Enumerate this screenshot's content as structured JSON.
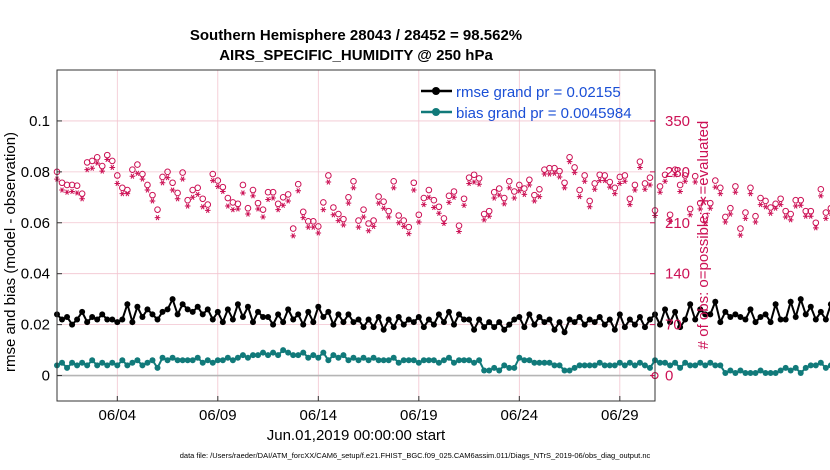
{
  "chart_data": {
    "type": "line",
    "title": [
      "Southern Hemisphere 28043 / 28452 = 98.562%",
      "AIRS_SPECIFIC_HUMIDITY @ 250 hPa"
    ],
    "xlabel": "Jun.01,2019 00:00:00 start",
    "ylabel_left": "rmse and bias (model - observation)",
    "ylabel_right": "# of obs: o=possible; ∗=evaluated",
    "footer": "data file: /Users/raeder/DAI/ATM_forcXX/CAM6_setup/f.e21.FHIST_BGC.f09_025.CAM6assim.011/Diags_NTrS_2019-06/obs_diag_output.nc",
    "x_ticks": [
      "06/04",
      "06/09",
      "06/14",
      "06/19",
      "06/24",
      "06/29"
    ],
    "x_tick_days": [
      4,
      9,
      14,
      19,
      24,
      29
    ],
    "xlim_days": [
      1.0,
      30.75
    ],
    "ylim_left": [
      -0.01,
      0.12
    ],
    "y_ticks_left": [
      "0",
      "0.02",
      "0.04",
      "0.06",
      "0.08",
      "0.1"
    ],
    "y_tick_values_left": [
      0,
      0.02,
      0.04,
      0.06,
      0.08,
      0.1
    ],
    "ylim_right": [
      -35,
      420
    ],
    "y_ticks_right": [
      "0",
      "70",
      "140",
      "210",
      "280",
      "350"
    ],
    "y_tick_values_right": [
      0,
      70,
      140,
      210,
      280,
      350
    ],
    "legend": [
      {
        "label": "rmse grand pr = 0.02155",
        "color": "#000000"
      },
      {
        "label": "bias grand pr = 0.0045984",
        "color": "#117a7a"
      }
    ],
    "colors": {
      "rmse": "#000000",
      "bias": "#117a7a",
      "counts": "#cc1155",
      "grid": "#f2c4cf"
    },
    "series": [
      {
        "name": "rmse",
        "values": [
          0.024,
          0.022,
          0.023,
          0.02,
          0.022,
          0.025,
          0.021,
          0.023,
          0.022,
          0.024,
          0.022,
          0.022,
          0.021,
          0.022,
          0.028,
          0.021,
          0.027,
          0.023,
          0.026,
          0.024,
          0.022,
          0.025,
          0.026,
          0.03,
          0.024,
          0.028,
          0.026,
          0.025,
          0.027,
          0.024,
          0.026,
          0.022,
          0.025,
          0.021,
          0.026,
          0.022,
          0.028,
          0.023,
          0.027,
          0.021,
          0.025,
          0.023,
          0.023,
          0.02,
          0.024,
          0.021,
          0.026,
          0.022,
          0.024,
          0.02,
          0.025,
          0.021,
          0.027,
          0.023,
          0.025,
          0.02,
          0.024,
          0.021,
          0.024,
          0.021,
          0.022,
          0.019,
          0.022,
          0.019,
          0.023,
          0.018,
          0.022,
          0.019,
          0.023,
          0.02,
          0.022,
          0.021,
          0.023,
          0.019,
          0.022,
          0.02,
          0.024,
          0.021,
          0.025,
          0.02,
          0.024,
          0.022,
          0.022,
          0.018,
          0.022,
          0.019,
          0.021,
          0.019,
          0.021,
          0.018,
          0.02,
          0.022,
          0.023,
          0.019,
          0.024,
          0.02,
          0.023,
          0.021,
          0.022,
          0.018,
          0.021,
          0.017,
          0.022,
          0.021,
          0.023,
          0.02,
          0.022,
          0.021,
          0.023,
          0.02,
          0.022,
          0.018,
          0.024,
          0.019,
          0.022,
          0.02,
          0.023,
          0.019,
          0.022,
          0.024,
          0.02,
          0.026,
          0.021,
          0.025,
          0.019,
          0.022,
          0.028,
          0.022,
          0.026,
          0.024,
          0.024,
          0.029,
          0.021,
          0.025,
          0.023,
          0.024,
          0.023,
          0.022,
          0.026,
          0.021,
          0.023,
          0.024,
          0.021,
          0.028,
          0.022,
          0.022,
          0.029,
          0.023,
          0.03,
          0.024,
          0.027,
          0.022,
          0.025,
          0.022,
          0.028,
          0.023,
          0.026,
          0.022,
          0.024,
          0.023,
          0.024,
          0.023,
          0.024,
          0.022,
          0.023,
          0.017,
          0.025,
          0.02,
          0.024,
          0.021,
          0.023,
          0.022,
          0.023,
          0.024
        ]
      },
      {
        "name": "bias",
        "values": [
          0.004,
          0.005,
          0.003,
          0.005,
          0.004,
          0.005,
          0.004,
          0.006,
          0.004,
          0.005,
          0.004,
          0.005,
          0.004,
          0.006,
          0.004,
          0.005,
          0.006,
          0.004,
          0.005,
          0.006,
          0.003,
          0.007,
          0.006,
          0.007,
          0.006,
          0.006,
          0.006,
          0.006,
          0.007,
          0.005,
          0.006,
          0.005,
          0.006,
          0.006,
          0.007,
          0.006,
          0.007,
          0.008,
          0.007,
          0.008,
          0.008,
          0.009,
          0.008,
          0.009,
          0.008,
          0.01,
          0.009,
          0.008,
          0.008,
          0.009,
          0.007,
          0.008,
          0.007,
          0.009,
          0.006,
          0.008,
          0.007,
          0.008,
          0.006,
          0.007,
          0.006,
          0.007,
          0.006,
          0.007,
          0.006,
          0.006,
          0.006,
          0.007,
          0.005,
          0.006,
          0.006,
          0.006,
          0.005,
          0.006,
          0.006,
          0.006,
          0.005,
          0.006,
          0.007,
          0.005,
          0.006,
          0.006,
          0.006,
          0.005,
          0.006,
          0.002,
          0.002,
          0.003,
          0.002,
          0.004,
          0.003,
          0.003,
          0.007,
          0.006,
          0.006,
          0.005,
          0.005,
          0.005,
          0.005,
          0.004,
          0.004,
          0.002,
          0.002,
          0.003,
          0.004,
          0.004,
          0.004,
          0.004,
          0.005,
          0.004,
          0.004,
          0.004,
          0.005,
          0.004,
          0.005,
          0.004,
          0.005,
          0.004,
          0.003,
          0.006,
          0.005,
          0.005,
          0.004,
          0.005,
          0.003,
          0.005,
          0.004,
          0.004,
          0.005,
          0.004,
          0.005,
          0.004,
          0.004,
          0.001,
          0.002,
          0.001,
          0.002,
          0.001,
          0.001,
          0.001,
          0.002,
          0.001,
          0.001,
          0.001,
          0.002,
          0.003,
          0.002,
          0.003,
          0.001,
          0.003,
          0.004,
          0.004,
          0.005,
          0.003,
          0.004,
          0.003,
          0.004,
          0.003,
          0.004,
          0.003,
          0.004,
          0.004,
          0.004,
          0.005,
          0.004,
          0.007,
          0.006,
          0.007,
          0.008,
          0.006,
          0.007,
          0.006,
          0.007,
          0.006,
          0.005,
          0.005
        ]
      },
      {
        "name": "possible",
        "values": [
          280,
          265,
          262,
          262,
          261,
          250,
          293,
          295,
          300,
          288,
          303,
          295,
          275,
          258,
          255,
          283,
          290,
          277,
          262,
          248,
          228,
          273,
          280,
          265,
          251,
          279,
          241,
          255,
          258,
          243,
          235,
          277,
          268,
          259,
          244,
          238,
          236,
          262,
          230,
          255,
          237,
          228,
          252,
          252,
          236,
          245,
          249,
          202,
          263,
          225,
          212,
          212,
          205,
          238,
          275,
          231,
          222,
          215,
          245,
          267,
          213,
          228,
          209,
          213,
          246,
          239,
          226,
          267,
          220,
          213,
          204,
          265,
          221,
          244,
          255,
          241,
          232,
          216,
          247,
          253,
          206,
          243,
          272,
          276,
          271,
          222,
          226,
          252,
          257,
          244,
          267,
          253,
          262,
          257,
          269,
          248,
          256,
          283,
          285,
          285,
          281,
          265,
          300,
          286,
          255,
          275,
          240,
          264,
          276,
          275,
          266,
          258,
          273,
          275,
          243,
          262,
          294,
          264,
          272,
          227,
          260,
          276,
          221,
          283,
          262,
          275,
          229,
          274,
          237,
          219,
          237,
          268,
          258,
          218,
          230,
          260,
          202,
          224,
          258,
          219,
          244,
          240,
          231,
          236,
          243,
          226,
          222,
          241,
          241,
          226,
          226,
          210,
          256,
          224,
          230,
          223,
          210,
          236,
          235,
          232,
          208,
          216,
          242,
          258,
          238,
          250,
          258,
          249,
          213,
          250,
          245,
          256,
          248,
          217,
          205,
          222,
          226,
          257,
          222,
          220,
          207,
          220,
          248,
          224
        ]
      },
      {
        "name": "evaluated",
        "values": [
          270,
          255,
          252,
          253,
          251,
          243,
          283,
          285,
          292,
          281,
          297,
          286,
          264,
          250,
          250,
          274,
          278,
          270,
          255,
          240,
          217,
          265,
          272,
          255,
          243,
          270,
          233,
          245,
          249,
          232,
          227,
          268,
          260,
          253,
          233,
          228,
          229,
          251,
          222,
          247,
          229,
          218,
          242,
          244,
          228,
          234,
          240,
          192,
          254,
          217,
          204,
          204,
          196,
          228,
          266,
          221,
          213,
          207,
          237,
          258,
          204,
          218,
          199,
          205,
          237,
          230,
          218,
          258,
          210,
          205,
          195,
          255,
          211,
          235,
          245,
          231,
          223,
          209,
          238,
          245,
          198,
          234,
          264,
          266,
          263,
          214,
          219,
          244,
          248,
          236,
          258,
          244,
          254,
          249,
          262,
          240,
          246,
          277,
          277,
          278,
          273,
          258,
          294,
          279,
          246,
          267,
          232,
          256,
          268,
          268,
          259,
          250,
          264,
          267,
          235,
          255,
          286,
          256,
          262,
          220,
          252,
          267,
          212,
          276,
          253,
          267,
          221,
          266,
          229,
          210,
          230,
          259,
          250,
          211,
          222,
          252,
          193,
          216,
          250,
          211,
          235,
          232,
          223,
          230,
          235,
          218,
          214,
          233,
          234,
          219,
          219,
          203,
          247,
          216,
          223,
          216,
          203,
          228,
          228,
          224,
          200,
          208,
          234,
          251,
          231,
          242,
          250,
          241,
          205,
          242,
          237,
          248,
          240,
          209,
          197,
          214,
          218,
          249,
          214,
          212,
          200,
          213,
          240,
          217
        ]
      }
    ]
  }
}
